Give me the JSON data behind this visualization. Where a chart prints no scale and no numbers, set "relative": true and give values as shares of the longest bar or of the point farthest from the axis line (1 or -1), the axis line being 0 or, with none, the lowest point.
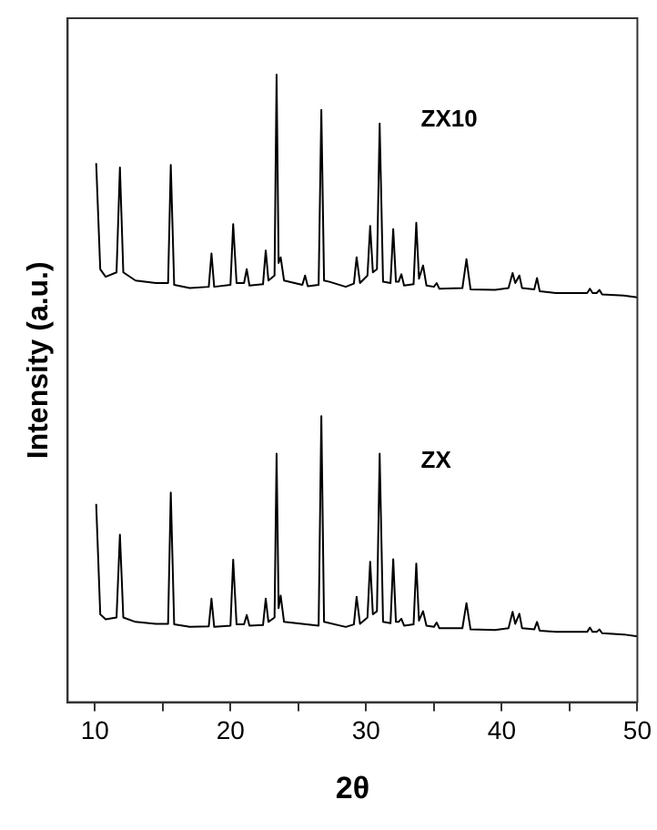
{
  "chart_data": {
    "type": "line",
    "relative": true,
    "xlabel": "2θ",
    "ylabel": "Intensity (a.u.)",
    "xlim": [
      8,
      50
    ],
    "xticks": [
      10,
      {
        "value": 15,
        "label": null
      },
      20,
      {
        "value": 25,
        "label": null
      },
      30,
      {
        "value": 35,
        "label": null
      },
      40,
      {
        "value": 45,
        "label": null
      },
      50
    ],
    "grid": false,
    "legend": false,
    "marker": "none",
    "line_style": "solid",
    "series": [
      {
        "name": "ZX10",
        "color": "#000000",
        "x": [
          10.1,
          10.4,
          10.8,
          11.6,
          11.85,
          12.1,
          13,
          14.5,
          15.4,
          15.6,
          15.85,
          17,
          18.4,
          18.6,
          18.8,
          20.0,
          20.2,
          20.45,
          21.0,
          21.2,
          21.4,
          22.4,
          22.6,
          22.8,
          23.25,
          23.4,
          23.55,
          23.7,
          23.95,
          25.3,
          25.5,
          25.7,
          26.5,
          26.7,
          26.9,
          27.3,
          28.5,
          29.1,
          29.3,
          29.55,
          30.1,
          30.3,
          30.5,
          30.8,
          31.0,
          31.25,
          31.8,
          32.0,
          32.2,
          32.4,
          32.6,
          32.8,
          33.5,
          33.7,
          33.9,
          34.2,
          34.45,
          35.0,
          35.2,
          35.4,
          37.1,
          37.4,
          37.7,
          39.5,
          40.5,
          40.8,
          41.0,
          41.3,
          41.5,
          42.4,
          42.6,
          42.8,
          44,
          46.3,
          46.5,
          46.7,
          47.0,
          47.2,
          47.4,
          49,
          50
        ],
        "values": [
          0.859,
          0.69,
          0.678,
          0.685,
          0.852,
          0.685,
          0.672,
          0.668,
          0.668,
          0.856,
          0.665,
          0.66,
          0.662,
          0.715,
          0.662,
          0.665,
          0.762,
          0.668,
          0.668,
          0.69,
          0.664,
          0.666,
          0.72,
          0.672,
          0.68,
          1.0,
          0.7,
          0.709,
          0.672,
          0.665,
          0.68,
          0.663,
          0.665,
          0.944,
          0.672,
          0.67,
          0.662,
          0.667,
          0.709,
          0.668,
          0.68,
          0.759,
          0.685,
          0.69,
          0.922,
          0.67,
          0.668,
          0.754,
          0.67,
          0.67,
          0.682,
          0.664,
          0.666,
          0.764,
          0.675,
          0.696,
          0.664,
          0.662,
          0.668,
          0.659,
          0.66,
          0.706,
          0.658,
          0.657,
          0.66,
          0.684,
          0.668,
          0.68,
          0.66,
          0.658,
          0.676,
          0.655,
          0.652,
          0.652,
          0.659,
          0.652,
          0.652,
          0.657,
          0.65,
          0.648,
          0.645
        ]
      },
      {
        "name": "ZX",
        "color": "#000000",
        "x": [
          10.1,
          10.4,
          10.8,
          11.6,
          11.85,
          12.1,
          13,
          14.5,
          15.4,
          15.6,
          15.85,
          17,
          18.4,
          18.6,
          18.8,
          20.0,
          20.2,
          20.45,
          21.0,
          21.2,
          21.4,
          22.4,
          22.6,
          22.8,
          23.25,
          23.4,
          23.55,
          23.7,
          23.95,
          26.5,
          26.7,
          26.9,
          28.5,
          29.1,
          29.3,
          29.55,
          30.1,
          30.3,
          30.5,
          30.8,
          31.0,
          31.25,
          31.8,
          32.0,
          32.2,
          32.4,
          32.6,
          32.8,
          33.5,
          33.7,
          33.9,
          34.2,
          34.45,
          35.0,
          35.2,
          35.4,
          37.1,
          37.4,
          37.7,
          39.5,
          40.5,
          40.8,
          41.0,
          41.3,
          41.5,
          42.4,
          42.6,
          42.8,
          44,
          46.3,
          46.5,
          46.7,
          47.0,
          47.2,
          47.4,
          49,
          50
        ],
        "values": [
          0.316,
          0.14,
          0.132,
          0.135,
          0.267,
          0.135,
          0.128,
          0.125,
          0.125,
          0.334,
          0.124,
          0.12,
          0.121,
          0.165,
          0.12,
          0.122,
          0.227,
          0.124,
          0.124,
          0.139,
          0.122,
          0.123,
          0.165,
          0.128,
          0.135,
          0.396,
          0.15,
          0.17,
          0.128,
          0.122,
          0.456,
          0.128,
          0.12,
          0.124,
          0.168,
          0.125,
          0.135,
          0.224,
          0.14,
          0.145,
          0.396,
          0.128,
          0.126,
          0.228,
          0.128,
          0.128,
          0.133,
          0.122,
          0.124,
          0.221,
          0.13,
          0.145,
          0.122,
          0.12,
          0.127,
          0.118,
          0.118,
          0.158,
          0.116,
          0.115,
          0.118,
          0.144,
          0.125,
          0.141,
          0.118,
          0.116,
          0.128,
          0.114,
          0.112,
          0.112,
          0.119,
          0.112,
          0.112,
          0.116,
          0.11,
          0.108,
          0.105
        ]
      }
    ]
  }
}
